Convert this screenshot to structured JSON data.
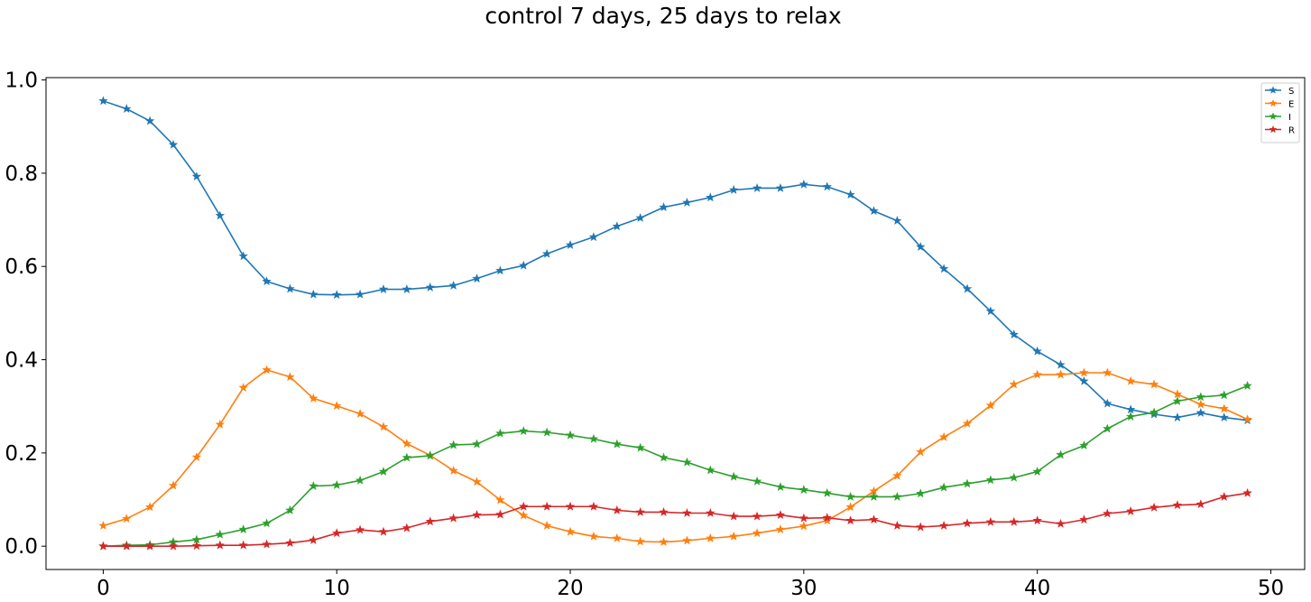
{
  "chart_data": {
    "type": "line",
    "title": "control 7 days, 25 days to relax",
    "xlabel": "",
    "ylabel": "",
    "xlim": [
      -2.45,
      51.45
    ],
    "ylim": [
      -0.05,
      1.005
    ],
    "xticks": [
      0,
      10,
      20,
      30,
      40,
      50
    ],
    "yticks": [
      0.0,
      0.2,
      0.4,
      0.6,
      0.8,
      1.0
    ],
    "xtick_labels": [
      "0",
      "10",
      "20",
      "30",
      "40",
      "50"
    ],
    "ytick_labels": [
      "0.0",
      "0.2",
      "0.4",
      "0.6",
      "0.8",
      "1.0"
    ],
    "grid": false,
    "legend_position": "top-right",
    "marker": "star",
    "x": [
      0,
      1,
      2,
      3,
      4,
      5,
      6,
      7,
      8,
      9,
      10,
      11,
      12,
      13,
      14,
      15,
      16,
      17,
      18,
      19,
      20,
      21,
      22,
      23,
      24,
      25,
      26,
      27,
      28,
      29,
      30,
      31,
      32,
      33,
      34,
      35,
      36,
      37,
      38,
      39,
      40,
      41,
      42,
      43,
      44,
      45,
      46,
      47,
      48,
      49
    ],
    "series": [
      {
        "name": "S",
        "color": "#1f77b4",
        "values": [
          0.955,
          0.938,
          0.912,
          0.861,
          0.793,
          0.709,
          0.622,
          0.568,
          0.552,
          0.54,
          0.539,
          0.54,
          0.551,
          0.551,
          0.555,
          0.559,
          0.574,
          0.591,
          0.602,
          0.627,
          0.646,
          0.663,
          0.686,
          0.704,
          0.727,
          0.737,
          0.748,
          0.764,
          0.768,
          0.768,
          0.776,
          0.771,
          0.754,
          0.719,
          0.698,
          0.642,
          0.595,
          0.552,
          0.504,
          0.454,
          0.418,
          0.389,
          0.354,
          0.306,
          0.293,
          0.283,
          0.276,
          0.286,
          0.276,
          0.27
        ]
      },
      {
        "name": "E",
        "color": "#ff7f0e",
        "values": [
          0.044,
          0.059,
          0.084,
          0.13,
          0.191,
          0.261,
          0.34,
          0.378,
          0.363,
          0.317,
          0.301,
          0.284,
          0.256,
          0.22,
          0.195,
          0.162,
          0.138,
          0.099,
          0.066,
          0.044,
          0.031,
          0.021,
          0.017,
          0.01,
          0.009,
          0.012,
          0.017,
          0.021,
          0.028,
          0.036,
          0.043,
          0.055,
          0.084,
          0.118,
          0.151,
          0.202,
          0.234,
          0.263,
          0.302,
          0.347,
          0.368,
          0.368,
          0.372,
          0.372,
          0.354,
          0.347,
          0.326,
          0.304,
          0.295,
          0.272
        ]
      },
      {
        "name": "I",
        "color": "#2ca02c",
        "values": [
          0.0,
          0.002,
          0.003,
          0.009,
          0.014,
          0.025,
          0.036,
          0.049,
          0.077,
          0.129,
          0.131,
          0.141,
          0.16,
          0.19,
          0.194,
          0.217,
          0.219,
          0.242,
          0.247,
          0.244,
          0.238,
          0.23,
          0.219,
          0.211,
          0.19,
          0.18,
          0.163,
          0.149,
          0.139,
          0.127,
          0.121,
          0.114,
          0.106,
          0.106,
          0.106,
          0.113,
          0.126,
          0.134,
          0.142,
          0.147,
          0.16,
          0.196,
          0.216,
          0.252,
          0.278,
          0.287,
          0.311,
          0.32,
          0.324,
          0.344
        ]
      },
      {
        "name": "R",
        "color": "#d62728",
        "values": [
          0.0,
          0.0,
          0.0,
          0.0,
          0.001,
          0.002,
          0.002,
          0.004,
          0.007,
          0.013,
          0.028,
          0.035,
          0.031,
          0.039,
          0.053,
          0.06,
          0.067,
          0.068,
          0.085,
          0.085,
          0.085,
          0.085,
          0.077,
          0.073,
          0.073,
          0.071,
          0.071,
          0.064,
          0.064,
          0.067,
          0.06,
          0.061,
          0.055,
          0.057,
          0.044,
          0.041,
          0.044,
          0.049,
          0.052,
          0.052,
          0.055,
          0.048,
          0.057,
          0.07,
          0.075,
          0.083,
          0.088,
          0.09,
          0.106,
          0.114
        ]
      }
    ]
  }
}
